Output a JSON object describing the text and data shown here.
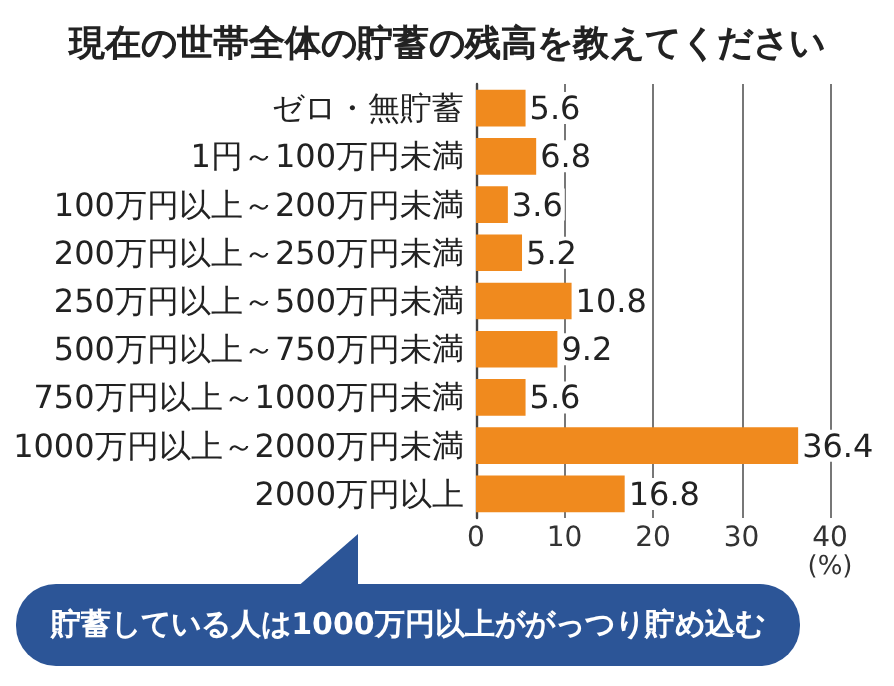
{
  "chart_data": {
    "type": "bar",
    "orientation": "horizontal",
    "title": "現在の世帯全体の貯蓄の残高を教えてください",
    "xlabel": "(%)",
    "categories": [
      "ゼロ・無貯蓄",
      "1円～100万円未満",
      "100万円以上～200万円未満",
      "200万円以上～250万円未満",
      "250万円以上～500万円未満",
      "500万円以上～750万円未満",
      "750万円以上～1000万円未満",
      "1000万円以上～2000万円未満",
      "2000万円以上"
    ],
    "values": [
      5.6,
      6.8,
      3.6,
      5.2,
      10.8,
      9.2,
      5.6,
      36.4,
      16.8
    ],
    "color": "#f08a1e",
    "xlim": [
      0,
      40
    ],
    "xticks": [
      0,
      10,
      20,
      30,
      40
    ],
    "grid": "x",
    "data_labels": true,
    "annotations": [
      "貯蓄している人は1000万円以上ががっつり貯め込む"
    ]
  }
}
